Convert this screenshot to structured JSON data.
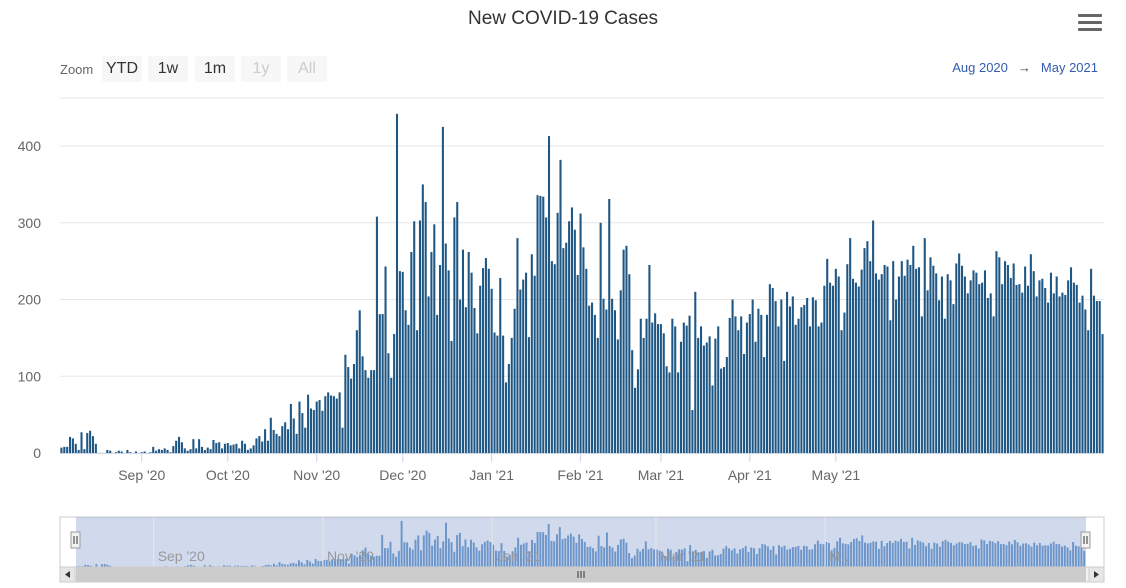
{
  "header": {
    "title": "New COVID-19 Cases",
    "menu_icon": "hamburger-menu-icon"
  },
  "range_selector": {
    "zoom_label": "Zoom",
    "buttons": [
      {
        "label": "YTD",
        "enabled": true
      },
      {
        "label": "1w",
        "enabled": true
      },
      {
        "label": "1m",
        "enabled": true
      },
      {
        "label": "1y",
        "enabled": false
      },
      {
        "label": "All",
        "enabled": false
      }
    ],
    "from": "Aug 2020",
    "arrow": "→",
    "to": "May 2021"
  },
  "navigator": {
    "labels": [
      "Sep '20",
      "Nov '20",
      "Jan '21",
      "Mar '21",
      "M..."
    ],
    "scroll_left_icon": "chevron-left-icon",
    "scroll_right_icon": "chevron-right-icon",
    "grip_icon": "grip-icon"
  },
  "chart_data": {
    "type": "bar",
    "title": "New COVID-19 Cases",
    "xlabel": "",
    "ylabel": "",
    "start_date": "2020-08-04",
    "end_date": "2021-05-05",
    "ylim": [
      0,
      460
    ],
    "yticks": [
      0,
      100,
      200,
      300,
      400
    ],
    "xtick_labels": [
      "Sep '20",
      "Oct '20",
      "Nov '20",
      "Dec '20",
      "Jan '21",
      "Feb '21",
      "Mar '21",
      "Apr '21",
      "May '21"
    ],
    "xtick_dates": [
      "2020-09-01",
      "2020-10-01",
      "2020-11-01",
      "2020-12-01",
      "2021-01-01",
      "2021-02-01",
      "2021-03-01",
      "2021-04-01",
      "2021-05-01"
    ],
    "grid": true,
    "bar_color": "#1f5784",
    "values": [
      7,
      8,
      8,
      21,
      19,
      12,
      4,
      27,
      5,
      26,
      29,
      22,
      12,
      0,
      0,
      0,
      4,
      3,
      0,
      1,
      3,
      2,
      0,
      4,
      1,
      0,
      2,
      0,
      1,
      2,
      0,
      1,
      8,
      3,
      5,
      4,
      6,
      4,
      1,
      9,
      16,
      21,
      14,
      6,
      3,
      5,
      18,
      6,
      18,
      8,
      4,
      7,
      5,
      17,
      13,
      14,
      6,
      12,
      13,
      10,
      11,
      12,
      6,
      16,
      12,
      4,
      6,
      10,
      19,
      22,
      15,
      31,
      16,
      46,
      30,
      25,
      22,
      35,
      40,
      31,
      64,
      45,
      25,
      67,
      52,
      33,
      76,
      58,
      56,
      67,
      69,
      55,
      74,
      79,
      75,
      74,
      71,
      79,
      33,
      128,
      112,
      97,
      116,
      160,
      186,
      126,
      108,
      98,
      108,
      108,
      308,
      181,
      181,
      243,
      130,
      98,
      155,
      442,
      237,
      236,
      186,
      167,
      262,
      302,
      160,
      303,
      350,
      327,
      204,
      262,
      298,
      180,
      245,
      425,
      273,
      238,
      146,
      307,
      327,
      200,
      265,
      190,
      262,
      235,
      189,
      156,
      218,
      241,
      254,
      240,
      214,
      157,
      153,
      228,
      153,
      92,
      116,
      150,
      188,
      280,
      213,
      226,
      235,
      151,
      259,
      231,
      336,
      335,
      334,
      307,
      413,
      250,
      246,
      313,
      382,
      267,
      274,
      302,
      320,
      291,
      232,
      312,
      268,
      240,
      192,
      196,
      180,
      150,
      300,
      201,
      187,
      331,
      201,
      186,
      148,
      212,
      265,
      270,
      233,
      134,
      85,
      109,
      175,
      150,
      175,
      245,
      170,
      182,
      168,
      168,
      156,
      113,
      105,
      175,
      165,
      105,
      145,
      170,
      166,
      179,
      56,
      210,
      150,
      165,
      140,
      144,
      152,
      88,
      149,
      165,
      110,
      112,
      125,
      176,
      200,
      178,
      160,
      178,
      129,
      170,
      181,
      200,
      145,
      188,
      180,
      125,
      180,
      220,
      215,
      198,
      165,
      200,
      120,
      210,
      191,
      204,
      167,
      175,
      190,
      193,
      202,
      165,
      203,
      199,
      165,
      170,
      218,
      253,
      222,
      218,
      240,
      230,
      160,
      183,
      246,
      280,
      227,
      222,
      217,
      239,
      267,
      276,
      250,
      303,
      234,
      226,
      233,
      245,
      243,
      173,
      250,
      200,
      230,
      250,
      231,
      252,
      245,
      270,
      240,
      242,
      178,
      280,
      212,
      255,
      244,
      234,
      199,
      230,
      175,
      233,
      225,
      194,
      247,
      260,
      244,
      230,
      208,
      225,
      238,
      235,
      220,
      222,
      238,
      202,
      208,
      178,
      263,
      255,
      220,
      250,
      245,
      228,
      247,
      219,
      220,
      209,
      243,
      218,
      259,
      237,
      204,
      225,
      227,
      215,
      196,
      235,
      208,
      230,
      204,
      209,
      206,
      225,
      242,
      222,
      219,
      196,
      205,
      187,
      160,
      240,
      205,
      198,
      198,
      155
    ]
  }
}
